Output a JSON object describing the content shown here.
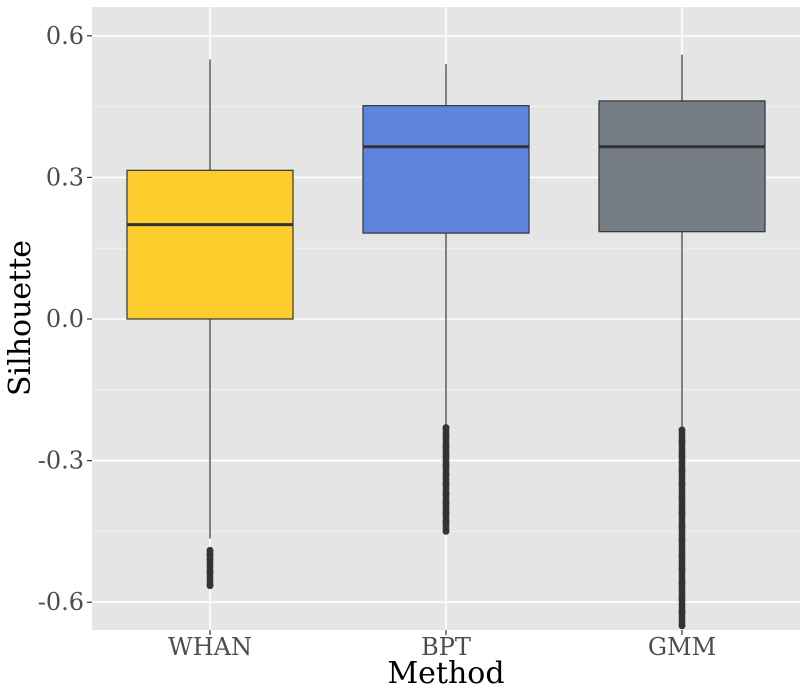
{
  "chart_data": {
    "type": "boxplot",
    "title": "",
    "xlabel": "Method",
    "ylabel": "Silhouette",
    "ylim": [
      -0.66,
      0.66
    ],
    "y_ticks": [
      -0.6,
      -0.3,
      0.0,
      0.3,
      0.6
    ],
    "y_tick_labels": [
      "-0.6",
      "-0.3",
      "0.0",
      "0.3",
      "0.6"
    ],
    "grid": true,
    "legend": "none",
    "background_color": "#e5e5e5",
    "categories": [
      "WHAN",
      "BPT",
      "GMM"
    ],
    "boxes": [
      {
        "category": "WHAN",
        "color": "#fdcd2d",
        "whisker_low": -0.465,
        "q1": 0.0,
        "median": 0.2,
        "q3": 0.315,
        "whisker_high": 0.55,
        "outliers": [
          -0.49,
          -0.5,
          -0.51,
          -0.535,
          -0.565
        ]
      },
      {
        "category": "BPT",
        "color": "#5d85dd",
        "whisker_low": -0.225,
        "q1": 0.182,
        "median": 0.365,
        "q3": 0.452,
        "whisker_high": 0.54,
        "outliers": [
          -0.23,
          -0.25,
          -0.27,
          -0.29,
          -0.31,
          -0.33,
          -0.35,
          -0.37,
          -0.39,
          -0.41,
          -0.43,
          -0.45
        ]
      },
      {
        "category": "GMM",
        "color": "#777d85",
        "whisker_low": -0.23,
        "q1": 0.185,
        "median": 0.365,
        "q3": 0.462,
        "whisker_high": 0.56,
        "outliers": [
          -0.235,
          -0.26,
          -0.29,
          -0.32,
          -0.35,
          -0.38,
          -0.41,
          -0.44,
          -0.47,
          -0.5,
          -0.53,
          -0.56,
          -0.59,
          -0.62,
          -0.65
        ]
      }
    ]
  }
}
